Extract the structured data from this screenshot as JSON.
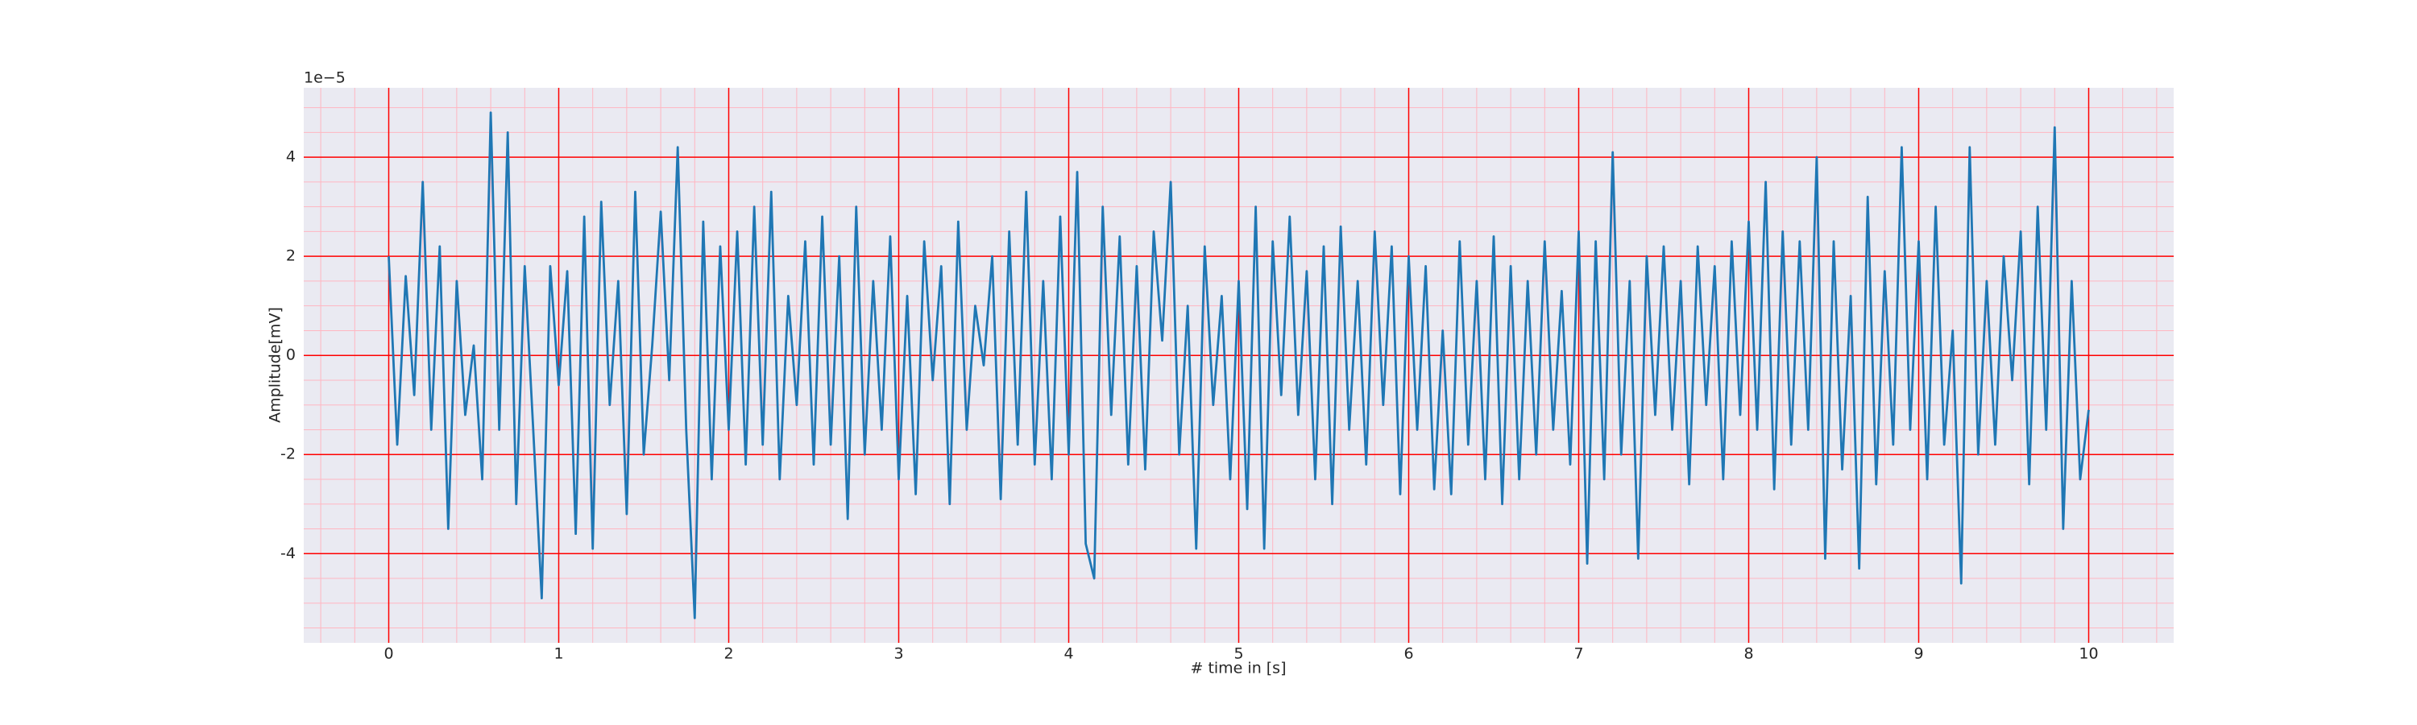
{
  "chart_data": {
    "type": "line",
    "xlabel": "# time in [s]",
    "ylabel": "Amplitude[mV]",
    "offset_label": "1e−5",
    "x": [
      0,
      0.05,
      0.1,
      0.15,
      0.2,
      0.25,
      0.3,
      0.35,
      0.4,
      0.45,
      0.5,
      0.55,
      0.6,
      0.65,
      0.7,
      0.75,
      0.8,
      0.85,
      0.9,
      0.95,
      1,
      1.05,
      1.1,
      1.15,
      1.2,
      1.25,
      1.3,
      1.35,
      1.4,
      1.45,
      1.5,
      1.55,
      1.6,
      1.65,
      1.7,
      1.75,
      1.8,
      1.85,
      1.9,
      1.95,
      2,
      2.05,
      2.1,
      2.15,
      2.2,
      2.25,
      2.3,
      2.35,
      2.4,
      2.45,
      2.5,
      2.55,
      2.6,
      2.65,
      2.7,
      2.75,
      2.8,
      2.85,
      2.9,
      2.95,
      3,
      3.05,
      3.1,
      3.15,
      3.2,
      3.25,
      3.3,
      3.35,
      3.4,
      3.45,
      3.5,
      3.55,
      3.6,
      3.65,
      3.7,
      3.75,
      3.8,
      3.85,
      3.9,
      3.95,
      4,
      4.05,
      4.1,
      4.15,
      4.2,
      4.25,
      4.3,
      4.35,
      4.4,
      4.45,
      4.5,
      4.55,
      4.6,
      4.65,
      4.7,
      4.75,
      4.8,
      4.85,
      4.9,
      4.95,
      5,
      5.05,
      5.1,
      5.15,
      5.2,
      5.25,
      5.3,
      5.35,
      5.4,
      5.45,
      5.5,
      5.55,
      5.6,
      5.65,
      5.7,
      5.75,
      5.8,
      5.85,
      5.9,
      5.95,
      6,
      6.05,
      6.1,
      6.15,
      6.2,
      6.25,
      6.3,
      6.35,
      6.4,
      6.45,
      6.5,
      6.55,
      6.6,
      6.65,
      6.7,
      6.75,
      6.8,
      6.85,
      6.9,
      6.95,
      7,
      7.05,
      7.1,
      7.15,
      7.2,
      7.25,
      7.3,
      7.35,
      7.4,
      7.45,
      7.5,
      7.55,
      7.6,
      7.65,
      7.7,
      7.75,
      7.8,
      7.85,
      7.9,
      7.95,
      8,
      8.05,
      8.1,
      8.15,
      8.2,
      8.25,
      8.3,
      8.35,
      8.4,
      8.45,
      8.5,
      8.55,
      8.6,
      8.65,
      8.7,
      8.75,
      8.8,
      8.85,
      8.9,
      8.95,
      9,
      9.05,
      9.1,
      9.15,
      9.2,
      9.25,
      9.3,
      9.35,
      9.4,
      9.45,
      9.5,
      9.55,
      9.6,
      9.65,
      9.7,
      9.75,
      9.8,
      9.85,
      9.9,
      9.95,
      10
    ],
    "series": [
      {
        "color": "#1f77b4",
        "values": [
          2,
          -1.8,
          1.6,
          -0.8,
          3.5,
          -1.5,
          2.2,
          -3.5,
          1.5,
          -1.2,
          0.2,
          -2.5,
          4.9,
          -1.5,
          4.5,
          -3.0,
          1.8,
          -1.5,
          -4.9,
          1.8,
          -0.6,
          1.7,
          -3.6,
          2.8,
          -3.9,
          3.1,
          -1.0,
          1.5,
          -3.2,
          3.3,
          -2.0,
          0.2,
          2.9,
          -0.5,
          4.2,
          -1.5,
          -5.3,
          2.7,
          -2.5,
          2.2,
          -1.5,
          2.5,
          -2.2,
          3.0,
          -1.8,
          3.3,
          -2.5,
          1.2,
          -1.0,
          2.3,
          -2.2,
          2.8,
          -1.8,
          2.0,
          -3.3,
          3.0,
          -2.0,
          1.5,
          -1.5,
          2.4,
          -2.5,
          1.2,
          -2.8,
          2.3,
          -0.5,
          1.8,
          -3.0,
          2.7,
          -1.5,
          1.0,
          -0.2,
          2.0,
          -2.9,
          2.5,
          -1.8,
          3.3,
          -2.2,
          1.5,
          -2.5,
          2.8,
          -2.0,
          3.7,
          -3.8,
          -4.5,
          3.0,
          -1.2,
          2.4,
          -2.2,
          1.8,
          -2.3,
          2.5,
          0.3,
          3.5,
          -2.0,
          1.0,
          -3.9,
          2.2,
          -1.0,
          1.2,
          -2.5,
          1.5,
          -3.1,
          3.0,
          -3.9,
          2.3,
          -0.8,
          2.8,
          -1.2,
          1.7,
          -2.5,
          2.2,
          -3.0,
          2.6,
          -1.5,
          1.5,
          -2.2,
          2.5,
          -1.0,
          2.2,
          -2.8,
          2.0,
          -1.5,
          1.8,
          -2.7,
          0.5,
          -2.8,
          2.3,
          -1.8,
          1.5,
          -2.5,
          2.4,
          -3.0,
          1.8,
          -2.5,
          1.5,
          -2.0,
          2.3,
          -1.5,
          1.3,
          -2.2,
          2.5,
          -4.2,
          2.3,
          -2.5,
          4.1,
          -2.0,
          1.5,
          -4.1,
          2.0,
          -1.2,
          2.2,
          -1.5,
          1.5,
          -2.6,
          2.2,
          -1.0,
          1.8,
          -2.5,
          2.3,
          -1.2,
          2.7,
          -1.5,
          3.5,
          -2.7,
          2.5,
          -1.8,
          2.3,
          -1.5,
          4.0,
          -4.1,
          2.3,
          -2.3,
          1.2,
          -4.3,
          3.2,
          -2.6,
          1.7,
          -1.8,
          4.2,
          -1.5,
          2.3,
          -2.5,
          3.0,
          -1.8,
          0.5,
          -4.6,
          4.2,
          -2.0,
          1.5,
          -1.8,
          2.0,
          -0.5,
          2.5,
          -2.6,
          3.0,
          -1.5,
          4.6,
          -3.5,
          1.5,
          -2.5,
          -1.1
        ]
      }
    ],
    "xlim": [
      -0.5,
      10.5
    ],
    "xticks": [
      0,
      1,
      2,
      3,
      4,
      5,
      6,
      7,
      8,
      9,
      10
    ],
    "ylim": [
      -5.8,
      5.4
    ],
    "yticks": [
      -4,
      -2,
      0,
      2,
      4
    ],
    "grid": true,
    "grid_color": "#ff0000",
    "minor_grid": true,
    "minor_grid_color": "#ffb6c1",
    "xminor_divisions": 5,
    "yminor_divisions": 4,
    "background": "#eaeaf2"
  }
}
